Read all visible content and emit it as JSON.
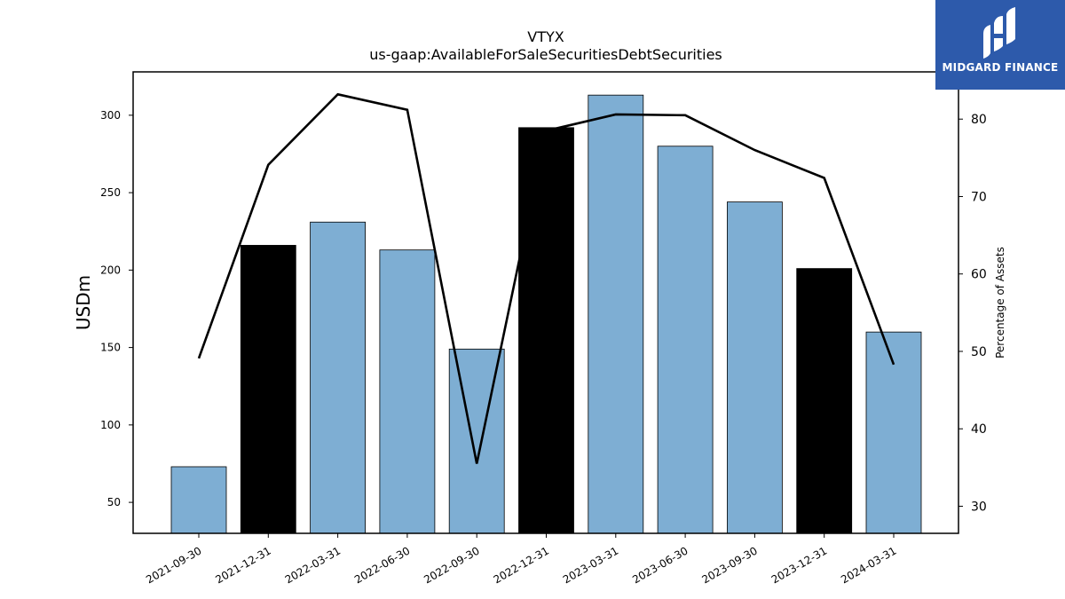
{
  "header": {
    "title": "VTYX",
    "subtitle": "us-gaap:AvailableForSaleSecuritiesDebtSecurities"
  },
  "logo": {
    "text": "MIDGARD FINANCE",
    "icon": "midgard-logo-icon",
    "background": "#2d5aab"
  },
  "chart_data": {
    "type": "bar",
    "categories": [
      "2021-09-30",
      "2021-12-31",
      "2022-03-31",
      "2022-06-30",
      "2022-09-30",
      "2022-12-31",
      "2023-03-31",
      "2023-06-30",
      "2023-09-30",
      "2023-12-31",
      "2024-03-31"
    ],
    "series": [
      {
        "axis": "left",
        "type": "bar",
        "values": [
          73,
          216,
          231,
          213,
          149,
          292,
          313,
          280,
          244,
          201,
          160
        ],
        "colors": [
          "#7eaed3",
          "#000000",
          "#7eaed3",
          "#7eaed3",
          "#7eaed3",
          "#000000",
          "#7eaed3",
          "#7eaed3",
          "#7eaed3",
          "#000000",
          "#7eaed3"
        ]
      },
      {
        "axis": "right",
        "type": "line",
        "values": [
          49.1,
          74.1,
          83.2,
          81.2,
          35.5,
          78.5,
          80.6,
          80.5,
          76.0,
          72.4,
          48.3
        ],
        "color": "#000000"
      }
    ],
    "ylabel": "USDm",
    "ylabel_right": "Percentage of Assets",
    "ylim": [
      30,
      328
    ],
    "ylim_right": [
      26.5,
      86.1
    ],
    "yticks": [
      50,
      100,
      150,
      200,
      250,
      300
    ],
    "yticks_right": [
      30,
      40,
      50,
      60,
      70,
      80
    ],
    "grid": false,
    "legend": "none"
  }
}
